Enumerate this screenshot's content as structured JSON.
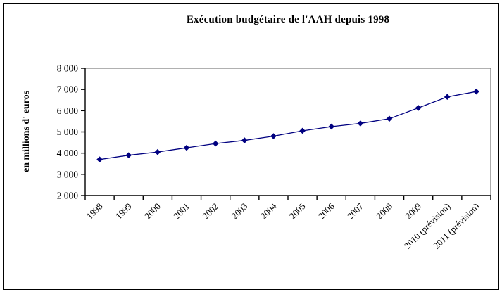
{
  "chart_data": {
    "type": "line",
    "title": "Exécution budgétaire de l'AAH depuis 1998",
    "ylabel": "en millions d' euros",
    "xlabel": "",
    "categories": [
      "1998",
      "1999",
      "2000",
      "2001",
      "2002",
      "2003",
      "2004",
      "2005",
      "2006",
      "2007",
      "2008",
      "2009",
      "2010 (prévision)",
      "2011 (prévision)"
    ],
    "series": [
      {
        "name": "Exécution budgétaire de l'AAH",
        "values": [
          3700,
          3900,
          4050,
          4250,
          4450,
          4600,
          4800,
          5050,
          5250,
          5400,
          5620,
          6130,
          6650,
          6900
        ]
      }
    ],
    "ylim": [
      2000,
      8000
    ],
    "ytick_step": 1000,
    "ytick_labels": [
      "2 000",
      "3 000",
      "4 000",
      "5 000",
      "6 000",
      "7 000",
      "8 000"
    ],
    "grid": false,
    "legend_position": "none",
    "marker": "diamond",
    "colors": {
      "line": "#000080",
      "marker": "#000080",
      "axis": "#000000",
      "plot_border": "#808080",
      "background": "#ffffff",
      "frame_border": "#000000"
    }
  }
}
